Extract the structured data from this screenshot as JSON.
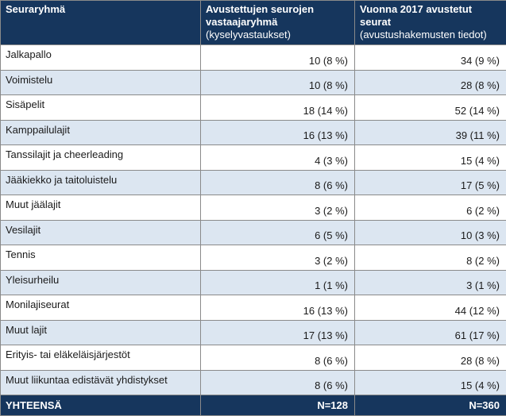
{
  "header": {
    "col1": "Seuraryhmä",
    "col2_main": "Avustettujen seurojen vastaajaryhmä",
    "col2_sub": "(kyselyvastaukset)",
    "col3_main": "Vuonna 2017 avustetut seurat",
    "col3_sub": "(avustushakemusten tiedot)"
  },
  "rows": [
    {
      "group": "Jalkapallo",
      "survey": "10 (8 %)",
      "applications": "34 (9 %)"
    },
    {
      "group": "Voimistelu",
      "survey": "10 (8 %)",
      "applications": "28 (8 %)"
    },
    {
      "group": "Sisäpelit",
      "survey": "18 (14 %)",
      "applications": "52 (14 %)"
    },
    {
      "group": "Kamppailulajit",
      "survey": "16 (13 %)",
      "applications": "39 (11 %)"
    },
    {
      "group": "Tanssilajit ja cheerleading",
      "survey": "4 (3 %)",
      "applications": "15 (4 %)"
    },
    {
      "group": "Jääkiekko ja taitoluistelu",
      "survey": "8 (6 %)",
      "applications": "17 (5 %)"
    },
    {
      "group": "Muut jäälajit",
      "survey": "3 (2 %)",
      "applications": "6 (2 %)"
    },
    {
      "group": "Vesilajit",
      "survey": "6 (5 %)",
      "applications": "10 (3 %)"
    },
    {
      "group": "Tennis",
      "survey": "3 (2 %)",
      "applications": "8 (2 %)"
    },
    {
      "group": "Yleisurheilu",
      "survey": "1 (1 %)",
      "applications": "3 (1 %)"
    },
    {
      "group": "Monilajiseurat",
      "survey": "16 (13 %)",
      "applications": "44 (12 %)"
    },
    {
      "group": "Muut lajit",
      "survey": "17 (13 %)",
      "applications": "61 (17 %)"
    },
    {
      "group": "Erityis- tai eläkeläisjärjestöt",
      "survey": "8 (6 %)",
      "applications": "28 (8 %)"
    },
    {
      "group": "Muut liikuntaa edistävät yhdistykset",
      "survey": "8 (6 %)",
      "applications": "15 (4 %)"
    }
  ],
  "total": {
    "label": "YHTEENSÄ",
    "survey": "N=128",
    "applications": "N=360"
  },
  "colors": {
    "header_bg": "#16365d",
    "stripe_bg": "#dce6f1",
    "border": "#8a8a8a"
  }
}
